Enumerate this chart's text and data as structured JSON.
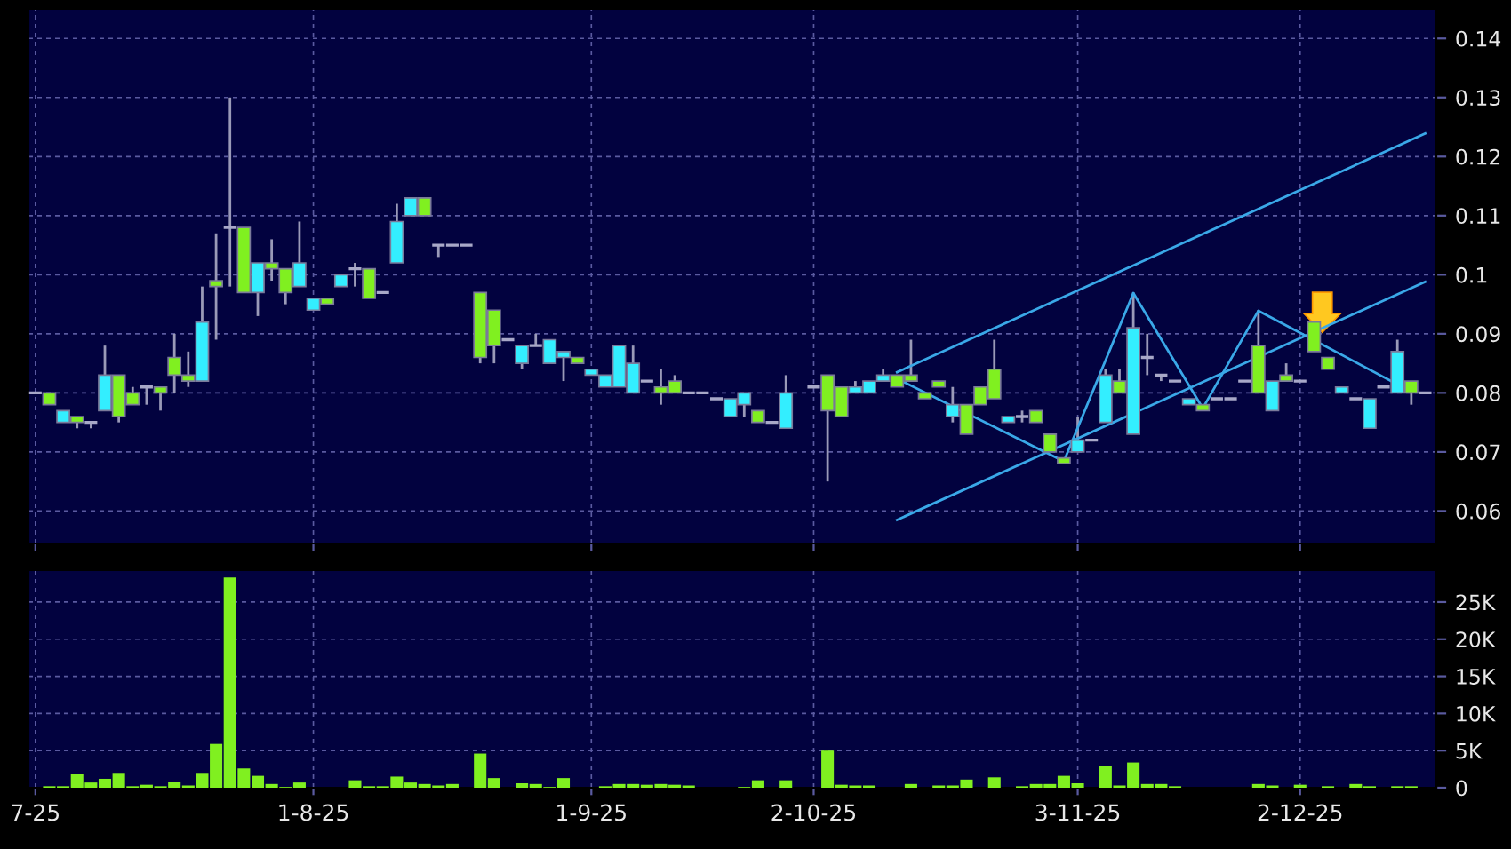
{
  "chart_data": [
    {
      "type": "candlestick",
      "categories": [
        null,
        null,
        null,
        null,
        null,
        null,
        null,
        null,
        null,
        null,
        null,
        null,
        null,
        null,
        null,
        null,
        null,
        null,
        null,
        null,
        null,
        null,
        null,
        null,
        null,
        null,
        null,
        null,
        null,
        null,
        null,
        null,
        null,
        null,
        null,
        null,
        null,
        null,
        null,
        null,
        null,
        null,
        null,
        null,
        null,
        null,
        null,
        null,
        null,
        null,
        null,
        null,
        null,
        null,
        null,
        null,
        null,
        null,
        null,
        null,
        null,
        null,
        null,
        null,
        null,
        null,
        null,
        null,
        null,
        null,
        null,
        null,
        null,
        null,
        null,
        null,
        null,
        null,
        null,
        null,
        null,
        null,
        null,
        null,
        null,
        null,
        null,
        null,
        null,
        null,
        null,
        null,
        null,
        null,
        null,
        null,
        null,
        null,
        null,
        null,
        null
      ],
      "ohlc": [
        [
          0.08,
          0.08,
          0.08,
          0.08
        ],
        [
          0.08,
          0.08,
          0.078,
          0.078
        ],
        [
          0.075,
          0.077,
          0.075,
          0.077
        ],
        [
          0.076,
          0.076,
          0.074,
          0.075
        ],
        [
          0.075,
          0.075,
          0.074,
          0.075
        ],
        [
          0.077,
          0.088,
          0.077,
          0.083
        ],
        [
          0.083,
          0.083,
          0.075,
          0.076
        ],
        [
          0.08,
          0.081,
          0.078,
          0.078
        ],
        [
          0.081,
          0.081,
          0.078,
          0.081
        ],
        [
          0.081,
          0.081,
          0.077,
          0.08
        ],
        [
          0.086,
          0.09,
          0.08,
          0.083
        ],
        [
          0.083,
          0.087,
          0.081,
          0.082
        ],
        [
          0.082,
          0.098,
          0.082,
          0.092
        ],
        [
          0.099,
          0.107,
          0.089,
          0.098
        ],
        [
          0.108,
          0.13,
          0.098,
          0.108
        ],
        [
          0.108,
          0.108,
          0.097,
          0.097
        ],
        [
          0.097,
          0.102,
          0.093,
          0.102
        ],
        [
          0.102,
          0.106,
          0.099,
          0.101
        ],
        [
          0.101,
          0.101,
          0.095,
          0.097
        ],
        [
          0.098,
          0.109,
          0.098,
          0.102
        ],
        [
          0.094,
          0.096,
          0.094,
          0.096
        ],
        [
          0.096,
          0.096,
          0.095,
          0.095
        ],
        [
          0.098,
          0.1,
          0.098,
          0.1
        ],
        [
          0.101,
          0.102,
          0.098,
          0.101
        ],
        [
          0.101,
          0.101,
          0.096,
          0.096
        ],
        [
          0.097,
          0.097,
          0.097,
          0.097
        ],
        [
          0.102,
          0.112,
          0.102,
          0.109
        ],
        [
          0.11,
          0.113,
          0.11,
          0.113
        ],
        [
          0.113,
          0.113,
          0.11,
          0.11
        ],
        [
          0.105,
          0.105,
          0.103,
          0.105
        ],
        [
          0.105,
          0.105,
          0.105,
          0.105
        ],
        [
          0.105,
          0.105,
          0.105,
          0.105
        ],
        [
          0.097,
          0.097,
          0.085,
          0.086
        ],
        [
          0.094,
          0.094,
          0.085,
          0.088
        ],
        [
          0.089,
          0.089,
          0.089,
          0.089
        ],
        [
          0.085,
          0.088,
          0.084,
          0.088
        ],
        [
          0.088,
          0.09,
          0.088,
          0.088
        ],
        [
          0.085,
          0.089,
          0.085,
          0.089
        ],
        [
          0.086,
          0.087,
          0.082,
          0.087
        ],
        [
          0.086,
          0.086,
          0.085,
          0.085
        ],
        [
          0.083,
          0.084,
          0.083,
          0.084
        ],
        [
          0.081,
          0.083,
          0.081,
          0.083
        ],
        [
          0.081,
          0.088,
          0.081,
          0.088
        ],
        [
          0.08,
          0.088,
          0.08,
          0.085
        ],
        [
          0.082,
          0.082,
          0.082,
          0.082
        ],
        [
          0.081,
          0.084,
          0.078,
          0.08
        ],
        [
          0.082,
          0.083,
          0.08,
          0.08
        ],
        [
          0.08,
          0.08,
          0.08,
          0.08
        ],
        [
          0.08,
          0.08,
          0.08,
          0.08
        ],
        [
          0.079,
          0.079,
          0.079,
          0.079
        ],
        [
          0.076,
          0.079,
          0.076,
          0.079
        ],
        [
          0.078,
          0.08,
          0.076,
          0.08
        ],
        [
          0.077,
          0.077,
          0.075,
          0.075
        ],
        [
          0.075,
          0.075,
          0.075,
          0.075
        ],
        [
          0.074,
          0.083,
          0.074,
          0.08
        ],
        null,
        [
          0.081,
          0.081,
          0.081,
          0.081
        ],
        [
          0.083,
          0.083,
          0.065,
          0.077
        ],
        [
          0.081,
          0.081,
          0.076,
          0.076
        ],
        [
          0.08,
          0.082,
          0.08,
          0.081
        ],
        [
          0.08,
          0.082,
          0.08,
          0.082
        ],
        [
          0.082,
          0.084,
          0.082,
          0.083
        ],
        [
          0.083,
          0.083,
          0.081,
          0.081
        ],
        [
          0.083,
          0.089,
          0.082,
          0.082
        ],
        [
          0.08,
          0.08,
          0.079,
          0.079
        ],
        [
          0.082,
          0.082,
          0.081,
          0.081
        ],
        [
          0.076,
          0.081,
          0.075,
          0.078
        ],
        [
          0.078,
          0.078,
          0.073,
          0.073
        ],
        [
          0.081,
          0.081,
          0.078,
          0.078
        ],
        [
          0.084,
          0.089,
          0.079,
          0.079
        ],
        [
          0.075,
          0.076,
          0.075,
          0.076
        ],
        [
          0.076,
          0.077,
          0.075,
          0.076
        ],
        [
          0.077,
          0.077,
          0.075,
          0.075
        ],
        [
          0.073,
          0.073,
          0.07,
          0.07
        ],
        [
          0.069,
          0.069,
          0.068,
          0.068
        ],
        [
          0.07,
          0.076,
          0.07,
          0.072
        ],
        [
          0.072,
          0.072,
          0.072,
          0.072
        ],
        [
          0.075,
          0.084,
          0.075,
          0.083
        ],
        [
          0.082,
          0.084,
          0.08,
          0.08
        ],
        [
          0.073,
          0.097,
          0.073,
          0.091
        ],
        [
          0.086,
          0.09,
          0.083,
          0.086
        ],
        [
          0.083,
          0.083,
          0.082,
          0.083
        ],
        [
          0.082,
          0.082,
          0.082,
          0.082
        ],
        [
          0.078,
          0.079,
          0.078,
          0.079
        ],
        [
          0.078,
          0.078,
          0.077,
          0.077
        ],
        [
          0.079,
          0.079,
          0.079,
          0.079
        ],
        [
          0.079,
          0.079,
          0.079,
          0.079
        ],
        [
          0.082,
          0.082,
          0.082,
          0.082
        ],
        [
          0.088,
          0.094,
          0.08,
          0.08
        ],
        [
          0.077,
          0.082,
          0.077,
          0.082
        ],
        [
          0.083,
          0.085,
          0.082,
          0.082
        ],
        [
          0.082,
          0.082,
          0.082,
          0.082
        ],
        [
          0.092,
          0.092,
          0.087,
          0.087
        ],
        [
          0.086,
          0.086,
          0.084,
          0.084
        ],
        [
          0.08,
          0.081,
          0.08,
          0.081
        ],
        [
          0.079,
          0.079,
          0.079,
          0.079
        ],
        [
          0.074,
          0.079,
          0.074,
          0.079
        ],
        [
          0.081,
          0.081,
          0.081,
          0.081
        ],
        [
          0.08,
          0.089,
          0.08,
          0.087
        ],
        [
          0.082,
          0.082,
          0.078,
          0.08
        ],
        [
          0.08,
          0.08,
          0.08,
          0.08
        ]
      ],
      "colors": [
        "#a8a8c8",
        "#80f020",
        "#33eeff",
        "#80f020",
        "#a8a8c8",
        "#33eeff",
        "#80f020",
        "#80f020",
        "#a8a8c8",
        "#80f020",
        "#80f020",
        "#80f020",
        "#33eeff",
        "#80f020",
        "#a8a8c8",
        "#80f020",
        "#33eeff",
        "#80f020",
        "#80f020",
        "#33eeff",
        "#33eeff",
        "#80f020",
        "#33eeff",
        "#a8a8c8",
        "#80f020",
        "#a8a8c8",
        "#33eeff",
        "#33eeff",
        "#80f020",
        "#a8a8c8",
        "#a8a8c8",
        "#a8a8c8",
        "#80f020",
        "#80f020",
        "#a8a8c8",
        "#33eeff",
        "#a8a8c8",
        "#33eeff",
        "#33eeff",
        "#80f020",
        "#33eeff",
        "#33eeff",
        "#33eeff",
        "#33eeff",
        "#a8a8c8",
        "#80f020",
        "#80f020",
        "#a8a8c8",
        "#a8a8c8",
        "#a8a8c8",
        "#33eeff",
        "#33eeff",
        "#80f020",
        "#a8a8c8",
        "#33eeff",
        null,
        "#a8a8c8",
        "#80f020",
        "#80f020",
        "#33eeff",
        "#33eeff",
        "#33eeff",
        "#80f020",
        "#80f020",
        "#80f020",
        "#80f020",
        "#33eeff",
        "#80f020",
        "#80f020",
        "#80f020",
        "#33eeff",
        "#a8a8c8",
        "#80f020",
        "#80f020",
        "#80f020",
        "#33eeff",
        "#a8a8c8",
        "#33eeff",
        "#80f020",
        "#33eeff",
        "#a8a8c8",
        "#a8a8c8",
        "#a8a8c8",
        "#33eeff",
        "#80f020",
        "#a8a8c8",
        "#a8a8c8",
        "#a8a8c8",
        "#80f020",
        "#33eeff",
        "#80f020",
        "#a8a8c8",
        "#80f020",
        "#80f020",
        "#33eeff",
        "#a8a8c8",
        "#33eeff",
        "#a8a8c8",
        "#33eeff",
        "#80f020",
        "#a8a8c8"
      ],
      "series": [
        {
          "type": "line",
          "values": [
            null,
            null,
            null,
            null,
            null,
            null,
            null,
            null,
            null,
            null,
            null,
            null,
            null,
            null,
            null,
            null,
            null,
            null,
            null,
            null,
            null,
            null,
            null,
            null,
            null,
            null,
            null,
            null,
            null,
            null,
            null,
            null,
            null,
            null,
            null,
            null,
            null,
            null,
            null,
            null,
            null,
            null,
            null,
            null,
            null,
            null,
            null,
            null,
            null,
            null,
            null,
            null,
            null,
            null,
            null,
            null,
            null,
            null,
            null,
            null,
            null,
            null,
            0.0585,
            null,
            null,
            null,
            null,
            null,
            null,
            null,
            null,
            null,
            null,
            null,
            null,
            null,
            null,
            null,
            null,
            null,
            null,
            null,
            null,
            null,
            null,
            null,
            null,
            null,
            null,
            null,
            null,
            null,
            null,
            null,
            null,
            null,
            null,
            null,
            null,
            null,
            0.0988
          ],
          "color": "#3aa8e8"
        },
        {
          "type": "line",
          "values": [
            null,
            null,
            null,
            null,
            null,
            null,
            null,
            null,
            null,
            null,
            null,
            null,
            null,
            null,
            null,
            null,
            null,
            null,
            null,
            null,
            null,
            null,
            null,
            null,
            null,
            null,
            null,
            null,
            null,
            null,
            null,
            null,
            null,
            null,
            null,
            null,
            null,
            null,
            null,
            null,
            null,
            null,
            null,
            null,
            null,
            null,
            null,
            null,
            null,
            null,
            null,
            null,
            null,
            null,
            null,
            null,
            null,
            null,
            null,
            null,
            null,
            null,
            0.0835,
            null,
            null,
            null,
            null,
            null,
            null,
            null,
            null,
            null,
            null,
            null,
            null,
            null,
            null,
            null,
            null,
            null,
            null,
            null,
            null,
            null,
            null,
            null,
            null,
            null,
            null,
            null,
            null,
            null,
            null,
            null,
            null,
            null,
            null,
            null,
            null,
            null,
            0.1239
          ],
          "color": "#3aa8e8"
        },
        {
          "type": "line",
          "values": [
            null,
            null,
            null,
            null,
            null,
            null,
            null,
            null,
            null,
            null,
            null,
            null,
            null,
            null,
            null,
            null,
            null,
            null,
            null,
            null,
            null,
            null,
            null,
            null,
            null,
            null,
            null,
            null,
            null,
            null,
            null,
            null,
            null,
            null,
            null,
            null,
            null,
            null,
            null,
            null,
            null,
            null,
            null,
            null,
            null,
            null,
            null,
            null,
            null,
            null,
            null,
            null,
            null,
            null,
            null,
            null,
            null,
            null,
            null,
            null,
            null,
            null,
            0.0824,
            null,
            null,
            null,
            null,
            null,
            null,
            null,
            null,
            null,
            null,
            null,
            0.0684,
            null,
            null,
            null,
            null,
            0.0969,
            null,
            null,
            null,
            null,
            0.0774,
            null,
            null,
            null,
            0.0939,
            null,
            null,
            null,
            null,
            null,
            null,
            null,
            null,
            null,
            null,
            0.0802,
            null
          ],
          "color": "#3aa8e8"
        }
      ],
      "ylim": [
        0.0545,
        0.145
      ],
      "yticks": [
        0.06,
        0.07,
        0.08,
        0.09,
        0.1,
        0.11,
        0.12,
        0.13,
        0.14
      ],
      "grid": true,
      "tick_labels": "y"
    },
    {
      "type": "bar",
      "categories": [
        "7-25",
        null,
        null,
        null,
        null,
        null,
        null,
        null,
        null,
        null,
        null,
        null,
        null,
        null,
        null,
        null,
        null,
        null,
        null,
        null,
        "1-8-25",
        null,
        null,
        null,
        null,
        null,
        null,
        null,
        null,
        null,
        null,
        null,
        null,
        null,
        null,
        null,
        null,
        null,
        null,
        null,
        "1-9-25",
        null,
        null,
        null,
        null,
        null,
        null,
        null,
        null,
        null,
        null,
        null,
        null,
        null,
        null,
        null,
        "2-10-25",
        null,
        null,
        null,
        null,
        null,
        null,
        null,
        null,
        null,
        null,
        null,
        null,
        null,
        null,
        null,
        null,
        null,
        null,
        "3-11-25",
        null,
        null,
        null,
        null,
        null,
        null,
        null,
        null,
        null,
        null,
        null,
        null,
        null,
        null,
        null,
        "2-12-25",
        null,
        null,
        null,
        null,
        null,
        null,
        null,
        null,
        null
      ],
      "values": [
        0,
        200,
        200,
        1800,
        700,
        1200,
        2000,
        200,
        400,
        200,
        800,
        300,
        2000,
        5900,
        28300,
        2600,
        1600,
        500,
        100,
        700,
        0,
        0,
        0,
        1000,
        200,
        200,
        1500,
        700,
        500,
        300,
        500,
        0,
        4600,
        1300,
        0,
        600,
        500,
        100,
        1300,
        0,
        0,
        200,
        500,
        500,
        400,
        500,
        400,
        300,
        0,
        0,
        0,
        100,
        1000,
        0,
        1000,
        0,
        0,
        5000,
        400,
        300,
        300,
        0,
        0,
        500,
        0,
        300,
        300,
        1100,
        0,
        1400,
        0,
        200,
        500,
        500,
        1600,
        600,
        0,
        2900,
        300,
        3400,
        500,
        500,
        200,
        0,
        0,
        0,
        0,
        0,
        500,
        300,
        0,
        400,
        0,
        200,
        0,
        500,
        200,
        0,
        200,
        200,
        0
      ],
      "color": "#80f020",
      "ylim": [
        0,
        29300
      ],
      "yticks": [
        0,
        {
          "value": 5000,
          "label": "5K"
        },
        {
          "value": 10000,
          "label": "10K"
        },
        {
          "value": 15000,
          "label": "15K"
        },
        {
          "value": 20000,
          "label": "20K"
        },
        {
          "value": 25000,
          "label": "25K"
        }
      ],
      "grid": true
    }
  ]
}
